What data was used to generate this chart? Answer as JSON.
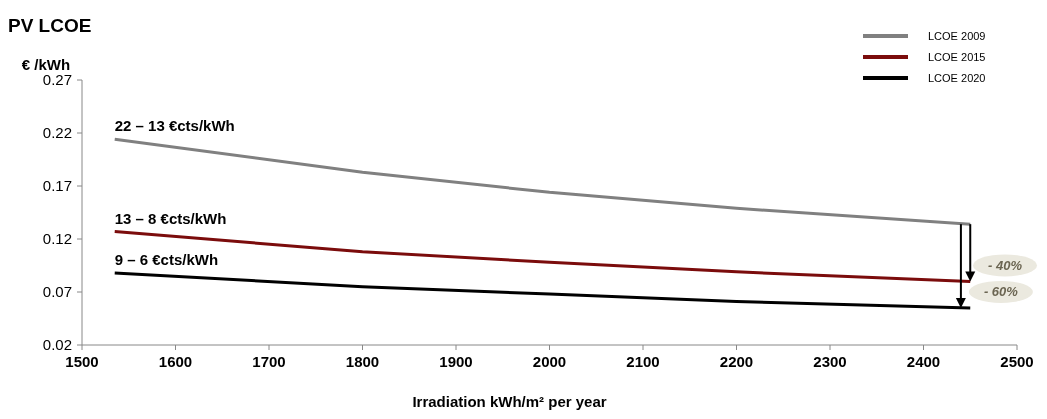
{
  "chart_data": {
    "type": "line",
    "title": "PV LCOE",
    "ylabel": "€ /kWh",
    "xlabel": "Irradiation kWh/m² per year",
    "x": [
      1535,
      1800,
      2000,
      2200,
      2450
    ],
    "series": [
      {
        "name": "LCOE 2009",
        "color": "#808080",
        "values": [
          0.214,
          0.183,
          0.164,
          0.149,
          0.134
        ]
      },
      {
        "name": "LCOE 2015",
        "color": "#7b0c0c",
        "values": [
          0.127,
          0.108,
          0.098,
          0.089,
          0.08
        ]
      },
      {
        "name": "LCOE 2020",
        "color": "#000000",
        "values": [
          0.088,
          0.075,
          0.068,
          0.061,
          0.055
        ]
      }
    ],
    "xlim": [
      1500,
      2500
    ],
    "xticks": [
      1500,
      1600,
      1700,
      1800,
      1900,
      2000,
      2100,
      2200,
      2300,
      2400,
      2500
    ],
    "ylim": [
      0.02,
      0.27
    ],
    "yticks": [
      0.02,
      0.07,
      0.12,
      0.17,
      0.22,
      0.27
    ],
    "annotations": [
      {
        "text": "22 – 13 €cts/kWh",
        "x": 1535,
        "y": 0.214
      },
      {
        "text": "13 – 8 €cts/kWh",
        "x": 1535,
        "y": 0.127
      },
      {
        "text": "9 – 6 €cts/kWh",
        "x": 1535,
        "y": 0.088
      },
      {
        "text": "- 40%",
        "x": 2450,
        "y": 0.08
      },
      {
        "text": "- 60%",
        "x": 2440,
        "y": 0.055
      }
    ],
    "legend": "top right",
    "grid": false,
    "marker": "none",
    "line_style": "solid"
  }
}
